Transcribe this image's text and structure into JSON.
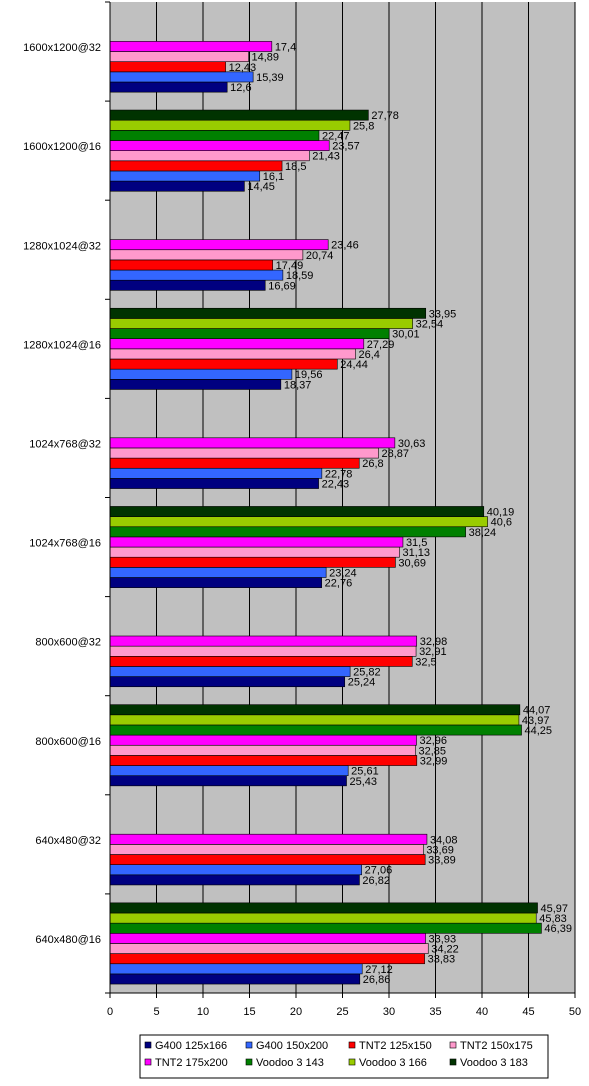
{
  "chart_data": {
    "type": "bar",
    "orientation": "horizontal",
    "title": "",
    "xlabel": "",
    "ylabel": "",
    "xlim": [
      0,
      50
    ],
    "x_ticks": [
      "0",
      "5",
      "10",
      "15",
      "20",
      "25",
      "30",
      "35",
      "40",
      "45",
      "50"
    ],
    "grid": true,
    "legend_position": "bottom",
    "categories": [
      "1600x1200@32",
      "1600x1200@16",
      "1280x1024@32",
      "1280x1024@16",
      "1024x768@32",
      "1024x768@16",
      "800x600@32",
      "800x600@16",
      "640x480@32",
      "640x480@16"
    ],
    "series": [
      {
        "name": "G400 125x166",
        "color": "#000080",
        "values": [
          12.6,
          14.45,
          16.69,
          18.37,
          22.43,
          22.76,
          25.24,
          25.43,
          26.82,
          26.86
        ],
        "labels": [
          "12,6",
          "14,45",
          "16,69",
          "18,37",
          "22,43",
          "22,76",
          "25,24",
          "25,43",
          "26,82",
          "26,86"
        ]
      },
      {
        "name": "G400 150x200",
        "color": "#3366ff",
        "values": [
          15.39,
          16.1,
          18.59,
          19.56,
          22.78,
          23.24,
          25.82,
          25.61,
          27.06,
          27.12
        ],
        "labels": [
          "15,39",
          "16,1",
          "18,59",
          "19,56",
          "22,78",
          "23,24",
          "25,82",
          "25,61",
          "27,06",
          "27,12"
        ]
      },
      {
        "name": "TNT2 125x150",
        "color": "#ff0000",
        "values": [
          12.43,
          18.5,
          17.49,
          24.44,
          26.8,
          30.69,
          32.5,
          32.99,
          33.89,
          33.83
        ],
        "labels": [
          "12,43",
          "18,5",
          "17,49",
          "24,44",
          "26,8",
          "30,69",
          "32,5",
          "32,99",
          "33,89",
          "33,83"
        ]
      },
      {
        "name": "TNT2 150x175",
        "color": "#ff99cc",
        "values": [
          14.89,
          21.43,
          20.74,
          26.4,
          28.87,
          31.13,
          32.91,
          32.85,
          33.69,
          34.22
        ],
        "labels": [
          "14,89",
          "21,43",
          "20,74",
          "26,4",
          "28,87",
          "31,13",
          "32,91",
          "32,85",
          "33,69",
          "34,22"
        ]
      },
      {
        "name": "TNT2 175x200",
        "color": "#ff00ff",
        "values": [
          17.4,
          23.57,
          23.46,
          27.29,
          30.63,
          31.5,
          32.98,
          32.96,
          34.08,
          33.93
        ],
        "labels": [
          "17,4",
          "23,57",
          "23,46",
          "27,29",
          "30,63",
          "31,5",
          "32,98",
          "32,96",
          "34,08",
          "33,93"
        ]
      },
      {
        "name": "Voodoo 3 143",
        "color": "#008000",
        "values": [
          null,
          22.47,
          null,
          30.01,
          null,
          38.24,
          null,
          44.25,
          null,
          46.39
        ],
        "labels": [
          null,
          "22,47",
          null,
          "30,01",
          null,
          "38,24",
          null,
          "44,25",
          null,
          "46,39"
        ]
      },
      {
        "name": "Voodoo 3 166",
        "color": "#99cc00",
        "values": [
          null,
          25.8,
          null,
          32.54,
          null,
          40.6,
          null,
          43.97,
          null,
          45.83
        ],
        "labels": [
          null,
          "25,8",
          null,
          "32,54",
          null,
          "40,6",
          null,
          "43,97",
          null,
          "45,83"
        ]
      },
      {
        "name": "Voodoo 3 183",
        "color": "#003300",
        "values": [
          null,
          27.78,
          null,
          33.95,
          null,
          40.19,
          null,
          44.07,
          null,
          45.97
        ],
        "labels": [
          null,
          "27,78",
          null,
          "33,95",
          null,
          "40,19",
          null,
          "44,07",
          null,
          "45,97"
        ]
      }
    ]
  }
}
